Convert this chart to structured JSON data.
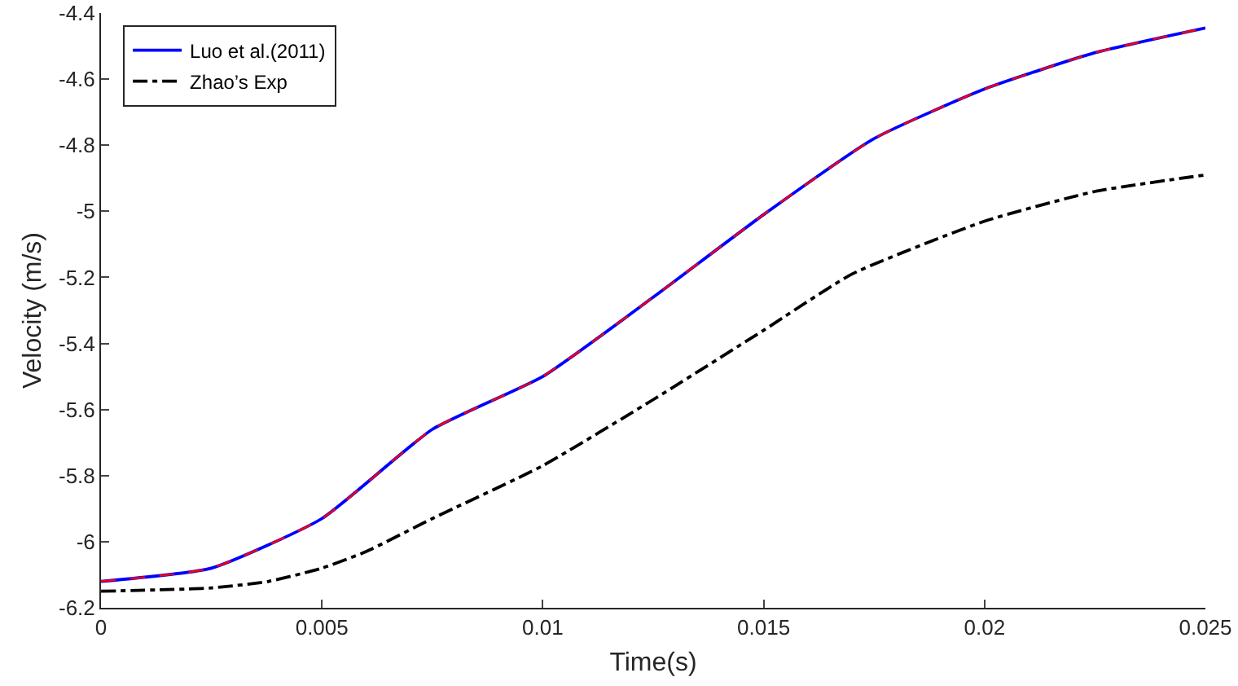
{
  "chart_data": {
    "type": "line",
    "xlabel": "Time(s)",
    "ylabel": "Velocity (m/s)",
    "x": [
      0,
      0.0025,
      0.005,
      0.0075,
      0.01,
      0.0125,
      0.015,
      0.0175,
      0.02,
      0.0225,
      0.025
    ],
    "series": [
      {
        "color": "#ff0000",
        "line_style": "dashed",
        "values": [
          -6.12,
          -6.08,
          -5.93,
          -5.66,
          -5.5,
          -5.26,
          -5.01,
          -4.78,
          -4.63,
          -4.52,
          -4.445
        ]
      },
      {
        "name": "Luo et al.(2011)",
        "color": "#0000ff",
        "line_style": "solid",
        "values": [
          -6.12,
          -6.08,
          -5.93,
          -5.66,
          -5.5,
          -5.26,
          -5.01,
          -4.78,
          -4.63,
          -4.52,
          -4.445
        ]
      },
      {
        "name": "Zhao’s Exp",
        "color": "#000000",
        "line_style": "dashdot",
        "x": [
          0,
          0.0025,
          0.0038,
          0.005,
          0.006,
          0.0075,
          0.01,
          0.0125,
          0.015,
          0.017,
          0.02,
          0.0225,
          0.025
        ],
        "values": [
          -6.15,
          -6.14,
          -6.12,
          -6.08,
          -6.03,
          -5.93,
          -5.77,
          -5.57,
          -5.36,
          -5.19,
          -5.03,
          -4.94,
          -4.89
        ]
      }
    ],
    "xlim": [
      0,
      0.025
    ],
    "xticks": [
      0,
      0.005,
      0.01,
      0.015,
      0.02,
      0.025
    ],
    "ylim": [
      -6.2,
      -4.4
    ],
    "yticks": [
      -6.2,
      -6,
      -5.8,
      -5.6,
      -5.4,
      -5.2,
      -5,
      -4.8,
      -4.6,
      -4.4
    ],
    "grid": false,
    "legend": "top left",
    "marker": "none"
  }
}
